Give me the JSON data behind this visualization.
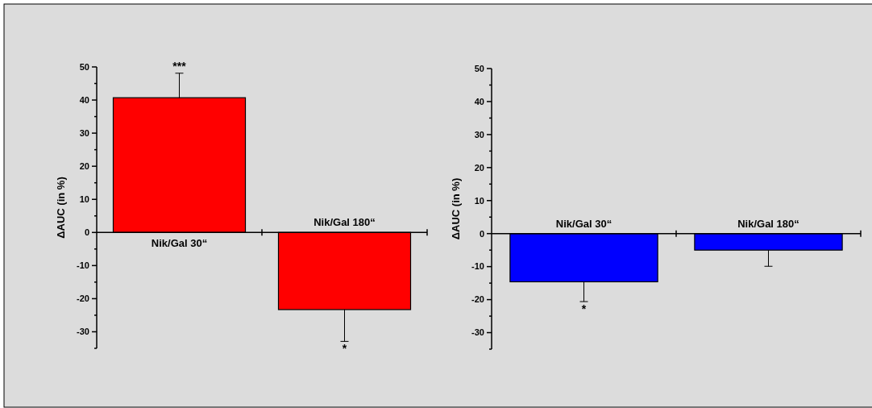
{
  "chart_data": [
    {
      "type": "bar",
      "ylabel": "ΔAUC (in %)",
      "categories": [
        "Nik/Gal 30“",
        "Nik/Gal 180“"
      ],
      "series": [
        {
          "color": "#ff0000",
          "values": [
            40.7,
            -23.3
          ],
          "errors": [
            [
              40.7,
              48.1
            ],
            [
              -32.9,
              -23.3
            ]
          ]
        }
      ],
      "ylim": [
        -35,
        50
      ],
      "yticks": [
        -30,
        -20,
        -10,
        0,
        10,
        20,
        30,
        40,
        50
      ],
      "annotations": [
        {
          "text": "***",
          "x": "Nik/Gal 30“",
          "y": 48.1
        },
        {
          "text": "*",
          "x": "Nik/Gal 180“",
          "y": -32.9
        }
      ]
    },
    {
      "type": "bar",
      "ylabel": "ΔAUC (in %)",
      "categories": [
        "Nik/Gal 30“",
        "Nik/Gal 180“"
      ],
      "series": [
        {
          "color": "#0000ff",
          "values": [
            -14.6,
            -5.0
          ],
          "errors": [
            [
              -20.6,
              -14.6
            ],
            [
              -9.9,
              -5.0
            ]
          ]
        }
      ],
      "ylim": [
        -35,
        50
      ],
      "yticks": [
        -30,
        -20,
        -10,
        0,
        10,
        20,
        30,
        40,
        50
      ],
      "annotations": [
        {
          "text": "*",
          "x": "Nik/Gal 30“",
          "y": -20.6
        }
      ]
    }
  ]
}
